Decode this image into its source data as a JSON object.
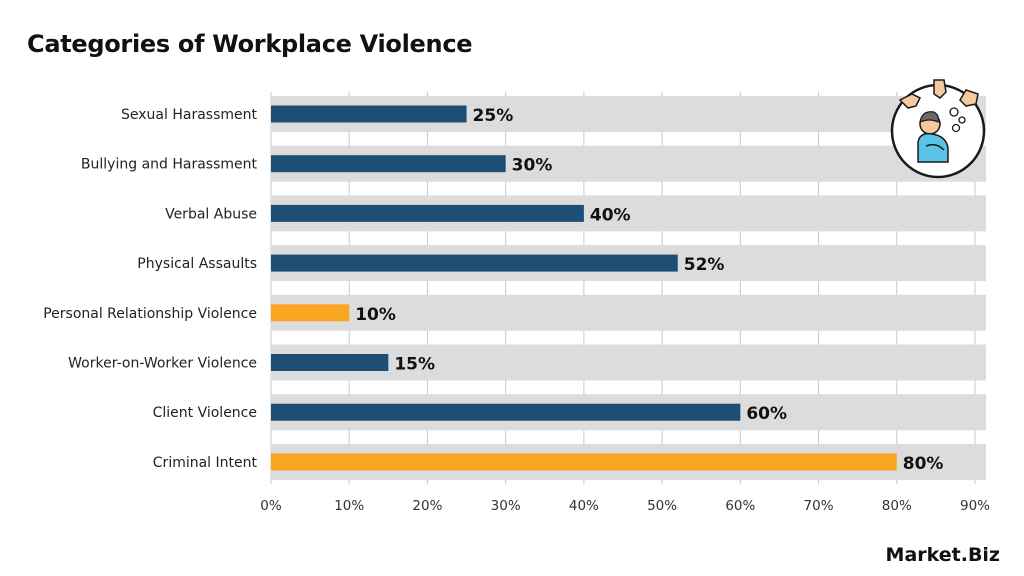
{
  "title": "Categories of Workplace Violence",
  "brand": "Market.Biz",
  "colors": {
    "primary_bar": "#1d4e75",
    "highlight_bar": "#f9a521",
    "track": "#dcdcdc",
    "gridline": "#c8c8c8"
  },
  "chart_data": {
    "type": "bar",
    "orientation": "horizontal",
    "title": "Categories of Workplace Violence",
    "categories": [
      "Sexual Harassment",
      "Bullying and Harassment",
      "Verbal Abuse",
      "Physical Assaults",
      "Personal Relationship Violence",
      "Worker-on-Worker Violence",
      "Client Violence",
      "Criminal Intent"
    ],
    "values": [
      25,
      30,
      40,
      52,
      10,
      15,
      60,
      80
    ],
    "value_labels": [
      "25%",
      "30%",
      "40%",
      "52%",
      "10%",
      "15%",
      "60%",
      "80%"
    ],
    "highlighted": [
      false,
      false,
      false,
      false,
      true,
      false,
      false,
      true
    ],
    "xlim": [
      0,
      90
    ],
    "x_ticks": [
      "0%",
      "10%",
      "20%",
      "30%",
      "40%",
      "50%",
      "60%",
      "70%",
      "80%",
      "90%"
    ],
    "grid": true
  }
}
